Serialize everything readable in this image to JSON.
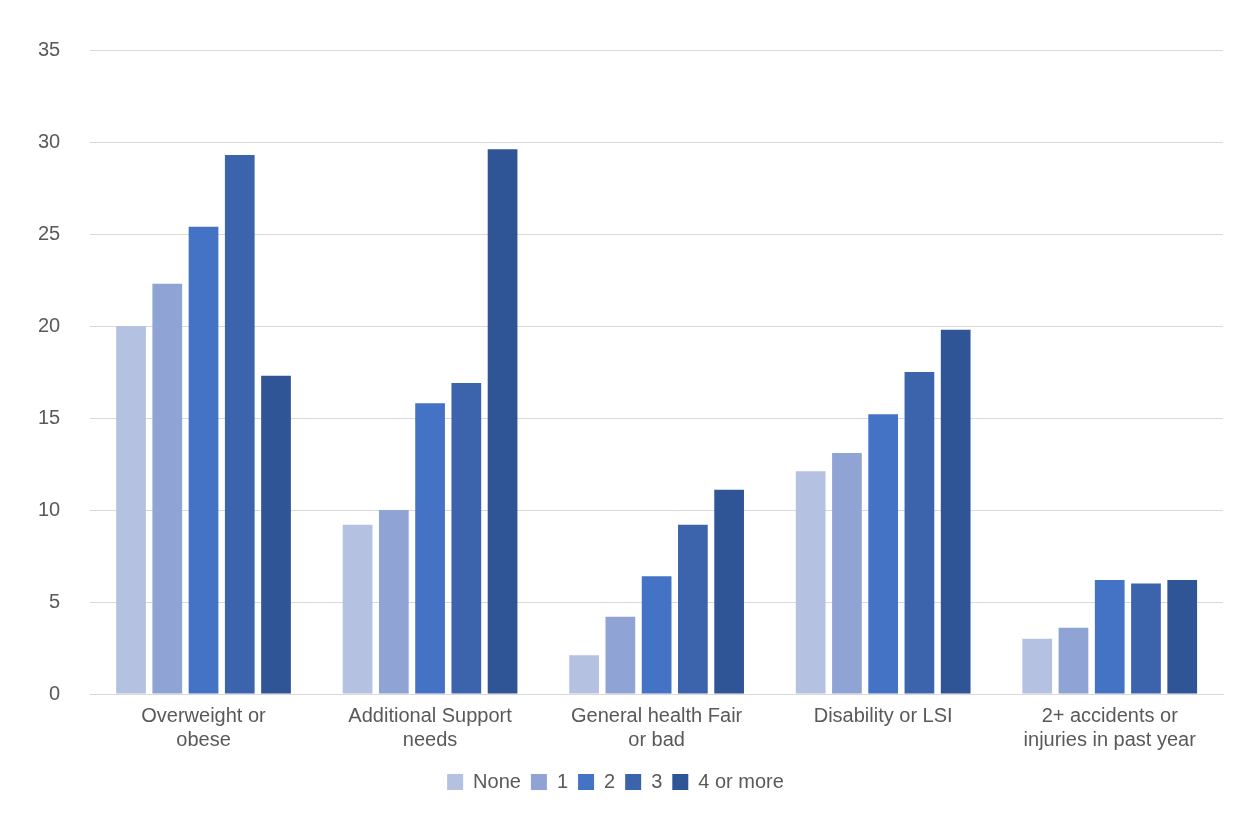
{
  "chart_data": {
    "type": "bar",
    "categories": [
      "Overweight or obese",
      "Additional Support needs",
      "General health Fair or bad",
      "Disability or LSI",
      "2+ accidents or injuries in past year"
    ],
    "series": [
      {
        "name": "None",
        "color": "#b4c1e1",
        "values": [
          20.0,
          9.2,
          2.1,
          12.1,
          3.0
        ]
      },
      {
        "name": "1",
        "color": "#8fa4d5",
        "values": [
          22.3,
          10.0,
          4.2,
          13.1,
          3.6
        ]
      },
      {
        "name": "2",
        "color": "#4472c4",
        "values": [
          25.4,
          15.8,
          6.4,
          15.2,
          6.2
        ]
      },
      {
        "name": "3",
        "color": "#3b64ad",
        "values": [
          29.3,
          16.9,
          9.2,
          17.5,
          6.0
        ]
      },
      {
        "name": "4 or more",
        "color": "#2f5597",
        "values": [
          17.3,
          29.6,
          11.1,
          19.8,
          6.2
        ]
      }
    ],
    "ylim": [
      0,
      35
    ],
    "yticks": [
      0,
      5,
      10,
      15,
      20,
      25,
      30,
      35
    ],
    "grid": "y",
    "legend": "bottom"
  }
}
